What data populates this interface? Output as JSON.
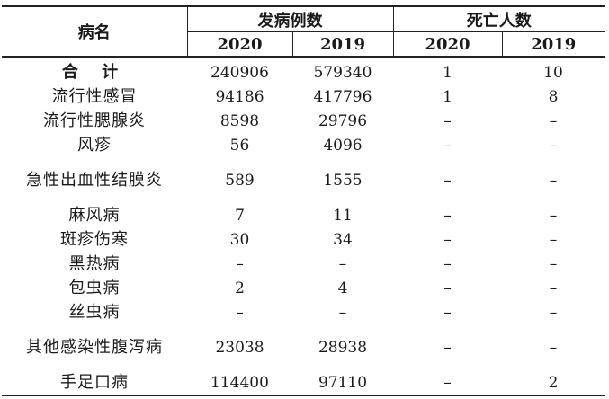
{
  "headers": {
    "disease": "病名",
    "incidence": "发病例数",
    "deaths": "死亡人数",
    "years": [
      "2020",
      "2019",
      "2020",
      "2019"
    ]
  },
  "rows": [
    {
      "name": "合  计",
      "c2020": "240906",
      "c2019": "579340",
      "d2020": "1",
      "d2019": "10"
    },
    {
      "name": "流行性感冒",
      "c2020": "94186",
      "c2019": "417796",
      "d2020": "1",
      "d2019": "8"
    },
    {
      "name": "流行性腮腺炎",
      "c2020": "8598",
      "c2019": "29796",
      "d2020": "–",
      "d2019": "–"
    },
    {
      "name": "风疹",
      "c2020": "56",
      "c2019": "4096",
      "d2020": "–",
      "d2019": "–"
    },
    {
      "name": "急性出血性结膜炎",
      "c2020": "589",
      "c2019": "1555",
      "d2020": "–",
      "d2019": "–"
    },
    {
      "name": "麻风病",
      "c2020": "7",
      "c2019": "11",
      "d2020": "–",
      "d2019": "–"
    },
    {
      "name": "斑疹伤寒",
      "c2020": "30",
      "c2019": "34",
      "d2020": "–",
      "d2019": "–"
    },
    {
      "name": "黑热病",
      "c2020": "–",
      "c2019": "–",
      "d2020": "–",
      "d2019": "–"
    },
    {
      "name": "包虫病",
      "c2020": "2",
      "c2019": "4",
      "d2020": "–",
      "d2019": "–"
    },
    {
      "name": "丝虫病",
      "c2020": "–",
      "c2019": "–",
      "d2020": "–",
      "d2019": "–"
    },
    {
      "name": "其他感染性腹泻病",
      "c2020": "23038",
      "c2019": "28938",
      "d2020": "–",
      "d2019": "–"
    },
    {
      "name": "手足口病",
      "c2020": "114400",
      "c2019": "97110",
      "d2020": "–",
      "d2019": "2"
    }
  ]
}
